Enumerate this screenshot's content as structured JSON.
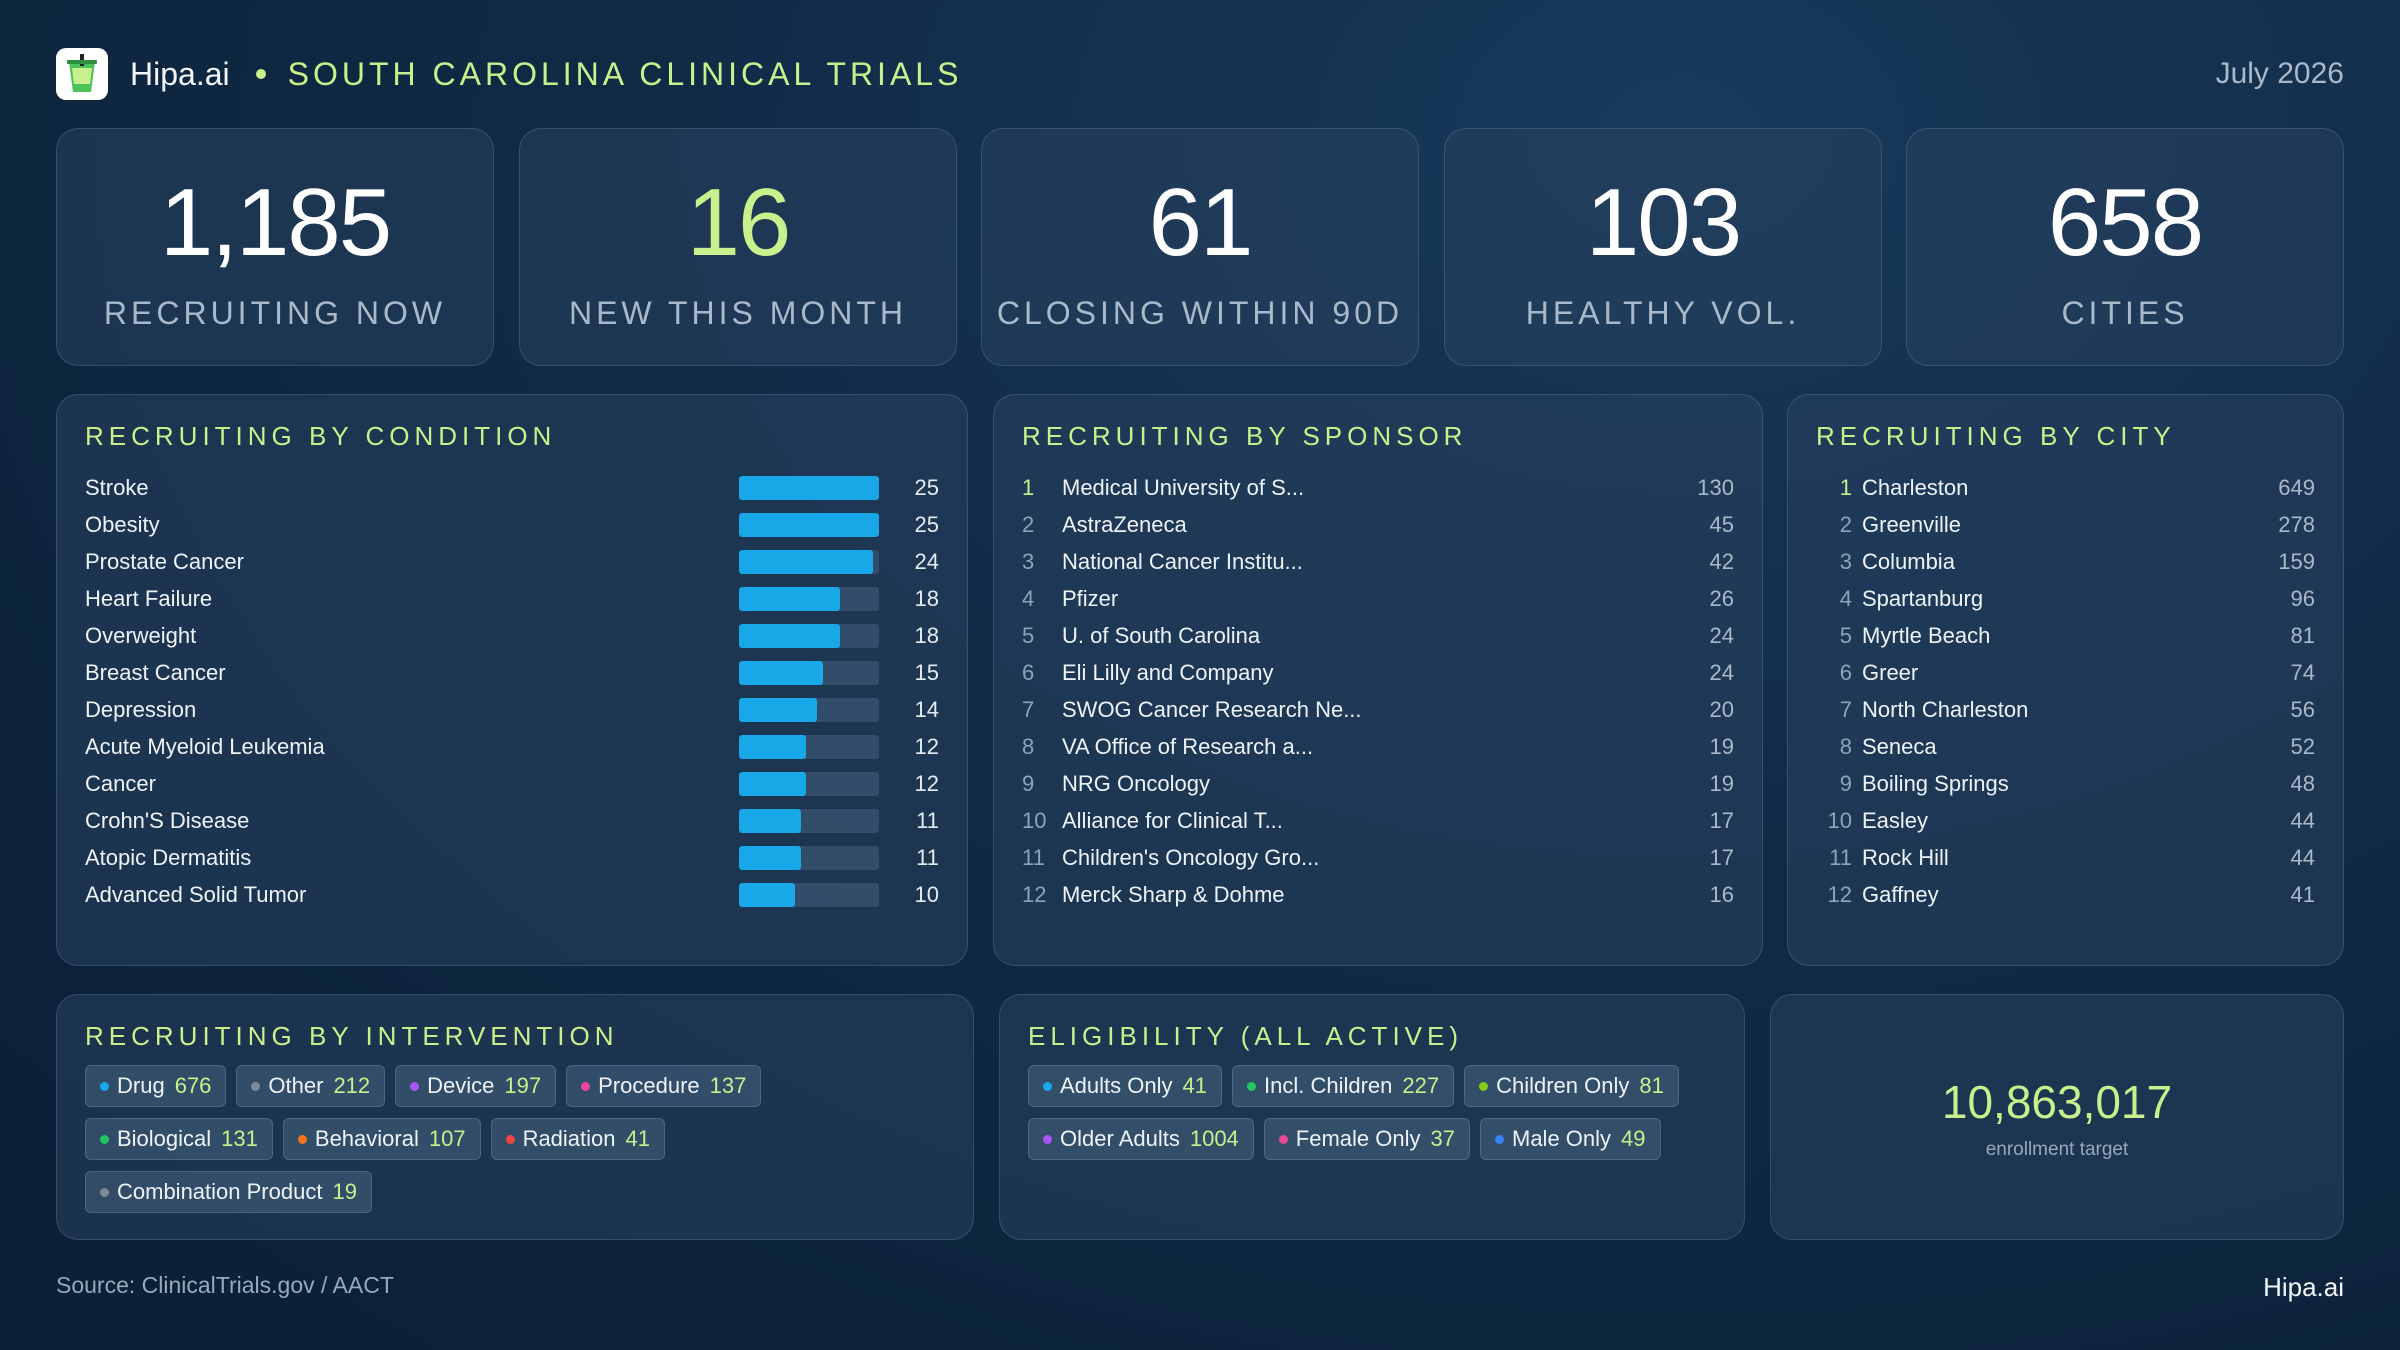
{
  "header": {
    "brand": "Hipa.ai",
    "title": "SOUTH CAROLINA CLINICAL TRIALS",
    "date": "July 2026"
  },
  "kpis": [
    {
      "value": "1,185",
      "label": "RECRUITING NOW"
    },
    {
      "value": "16",
      "label": "NEW THIS MONTH"
    },
    {
      "value": "61",
      "label": "CLOSING WITHIN 90D"
    },
    {
      "value": "103",
      "label": "HEALTHY VOL."
    },
    {
      "value": "658",
      "label": "CITIES"
    }
  ],
  "condition": {
    "title": "RECRUITING BY CONDITION",
    "max": 25,
    "items": [
      {
        "name": "Stroke",
        "value": 25
      },
      {
        "name": "Obesity",
        "value": 25
      },
      {
        "name": "Prostate Cancer",
        "value": 24
      },
      {
        "name": "Heart Failure",
        "value": 18
      },
      {
        "name": "Overweight",
        "value": 18
      },
      {
        "name": "Breast Cancer",
        "value": 15
      },
      {
        "name": "Depression",
        "value": 14
      },
      {
        "name": "Acute Myeloid Leukemia",
        "value": 12
      },
      {
        "name": "Cancer",
        "value": 12
      },
      {
        "name": "Crohn'S Disease",
        "value": 11
      },
      {
        "name": "Atopic Dermatitis",
        "value": 11
      },
      {
        "name": "Advanced Solid Tumor",
        "value": 10
      }
    ]
  },
  "sponsor": {
    "title": "RECRUITING BY SPONSOR",
    "items": [
      {
        "rank": "1",
        "name": "Medical University of S...",
        "value": "130"
      },
      {
        "rank": "2",
        "name": "AstraZeneca",
        "value": "45"
      },
      {
        "rank": "3",
        "name": "National Cancer Institu...",
        "value": "42"
      },
      {
        "rank": "4",
        "name": "Pfizer",
        "value": "26"
      },
      {
        "rank": "5",
        "name": "U. of South Carolina",
        "value": "24"
      },
      {
        "rank": "6",
        "name": "Eli Lilly and Company",
        "value": "24"
      },
      {
        "rank": "7",
        "name": "SWOG Cancer Research Ne...",
        "value": "20"
      },
      {
        "rank": "8",
        "name": "VA Office of Research a...",
        "value": "19"
      },
      {
        "rank": "9",
        "name": "NRG Oncology",
        "value": "19"
      },
      {
        "rank": "10",
        "name": "Alliance for Clinical T...",
        "value": "17"
      },
      {
        "rank": "11",
        "name": "Children's Oncology Gro...",
        "value": "17"
      },
      {
        "rank": "12",
        "name": "Merck Sharp & Dohme",
        "value": "16"
      }
    ]
  },
  "city": {
    "title": "RECRUITING BY CITY",
    "items": [
      {
        "rank": "1",
        "name": "Charleston",
        "value": "649"
      },
      {
        "rank": "2",
        "name": "Greenville",
        "value": "278"
      },
      {
        "rank": "3",
        "name": "Columbia",
        "value": "159"
      },
      {
        "rank": "4",
        "name": "Spartanburg",
        "value": "96"
      },
      {
        "rank": "5",
        "name": "Myrtle Beach",
        "value": "81"
      },
      {
        "rank": "6",
        "name": "Greer",
        "value": "74"
      },
      {
        "rank": "7",
        "name": "North Charleston",
        "value": "56"
      },
      {
        "rank": "8",
        "name": "Seneca",
        "value": "52"
      },
      {
        "rank": "9",
        "name": "Boiling Springs",
        "value": "48"
      },
      {
        "rank": "10",
        "name": "Easley",
        "value": "44"
      },
      {
        "rank": "11",
        "name": "Rock Hill",
        "value": "44"
      },
      {
        "rank": "12",
        "name": "Gaffney",
        "value": "41"
      }
    ]
  },
  "intervention": {
    "title": "RECRUITING BY INTERVENTION",
    "chips": [
      {
        "label": "Drug",
        "value": "676",
        "color": "#1aa7ec"
      },
      {
        "label": "Other",
        "value": "212",
        "color": "#7d8a98"
      },
      {
        "label": "Device",
        "value": "197",
        "color": "#a855f7"
      },
      {
        "label": "Procedure",
        "value": "137",
        "color": "#ec4899"
      },
      {
        "label": "Biological",
        "value": "131",
        "color": "#22c55e"
      },
      {
        "label": "Behavioral",
        "value": "107",
        "color": "#f97316"
      },
      {
        "label": "Radiation",
        "value": "41",
        "color": "#ef4444"
      },
      {
        "label": "Combination Product",
        "value": "19",
        "color": "#7d8a98"
      }
    ]
  },
  "eligibility": {
    "title": "ELIGIBILITY (ALL ACTIVE)",
    "chips": [
      {
        "label": "Adults Only",
        "value": "41",
        "color": "#1aa7ec"
      },
      {
        "label": "Incl. Children",
        "value": "227",
        "color": "#22c55e"
      },
      {
        "label": "Children Only",
        "value": "81",
        "color": "#84cc16"
      },
      {
        "label": "Older Adults",
        "value": "1004",
        "color": "#a855f7"
      },
      {
        "label": "Female Only",
        "value": "37",
        "color": "#ec4899"
      },
      {
        "label": "Male Only",
        "value": "49",
        "color": "#3b82f6"
      }
    ]
  },
  "enrollment": {
    "value": "10,863,017",
    "label": "enrollment target"
  },
  "footer": {
    "source": "Source: ClinicalTrials.gov / AACT",
    "brand": "Hipa.ai"
  }
}
